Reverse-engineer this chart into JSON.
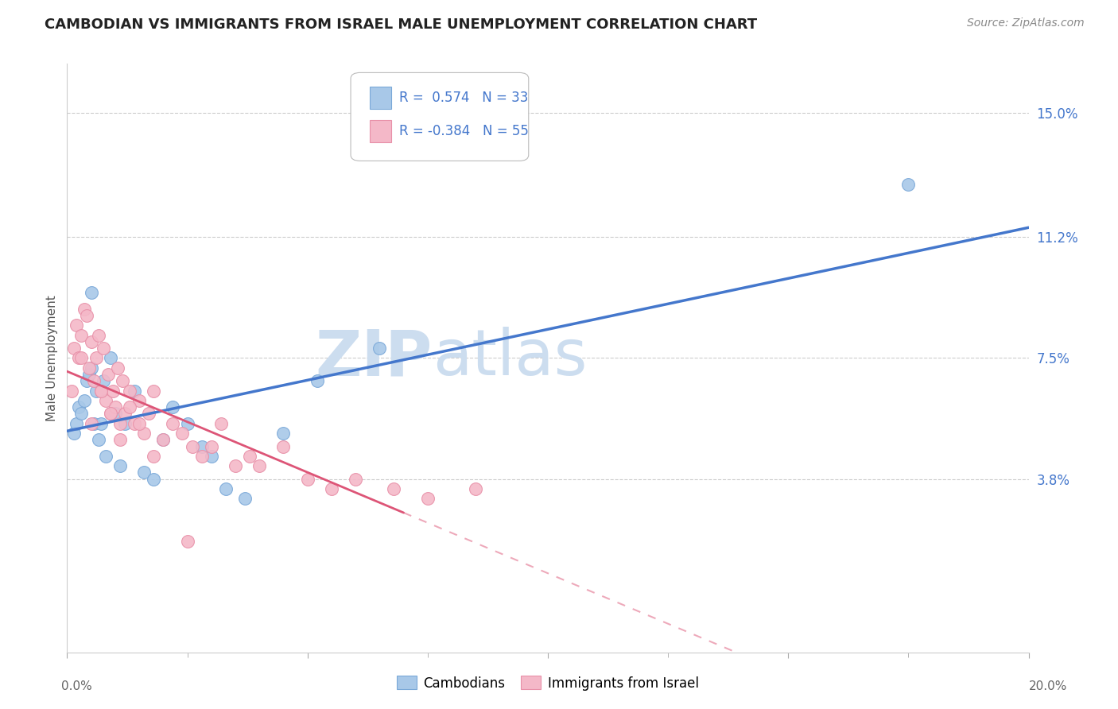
{
  "title": "CAMBODIAN VS IMMIGRANTS FROM ISRAEL MALE UNEMPLOYMENT CORRELATION CHART",
  "source": "Source: ZipAtlas.com",
  "ylabel": "Male Unemployment",
  "ytick_values": [
    3.8,
    7.5,
    11.2,
    15.0
  ],
  "xlim": [
    0.0,
    20.0
  ],
  "ylim": [
    -1.5,
    16.5
  ],
  "legend1_r": "0.574",
  "legend1_n": "33",
  "legend2_r": "-0.384",
  "legend2_n": "55",
  "blue_scatter_color": "#a8c8e8",
  "blue_edge_color": "#7aa8d8",
  "pink_scatter_color": "#f4b8c8",
  "pink_edge_color": "#e890a8",
  "trend_blue": "#4477cc",
  "trend_pink": "#dd5577",
  "grid_color": "#cccccc",
  "title_color": "#222222",
  "source_color": "#888888",
  "ytick_color": "#4477cc",
  "xtick_color": "#666666",
  "watermark_zip_color": "#ccddef",
  "watermark_atlas_color": "#ccddef",
  "legend_r_color": "#4477cc",
  "legend_text_color": "#333333"
}
